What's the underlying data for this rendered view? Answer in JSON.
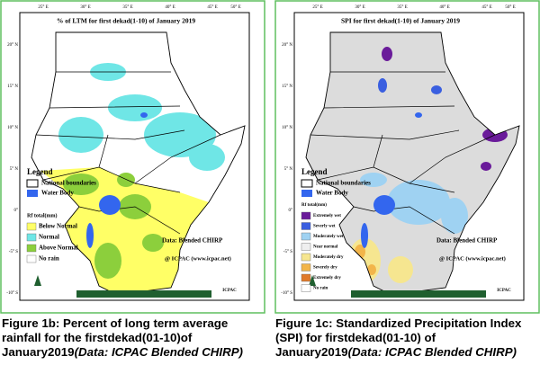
{
  "map_grid": {
    "lon_labels": [
      "25° E",
      "30° E",
      "35° E",
      "40° E",
      "45° E",
      "50° E"
    ],
    "lat_labels": [
      "20° N",
      "15° N",
      "10° N",
      "5° N",
      "0°",
      "-5° S",
      "-10° S"
    ]
  },
  "panels": [
    {
      "title": "% of LTM   for  first dekad(1-10) of January  2019",
      "legend_title": "Legend",
      "boundary_label": "National boundaries",
      "water_label": "Water Body",
      "rf_title": "Rf total(mm)",
      "legend_items": [
        {
          "label": "Below Normal",
          "color": "#ffff66"
        },
        {
          "label": "Normal",
          "color": "#6fe6e6"
        },
        {
          "label": "Above Normal",
          "color": "#8ccf3c"
        },
        {
          "label": "No rain",
          "color": "#ffffff"
        }
      ],
      "data_source": "Data: Blended CHIRP",
      "credit": "@ ICPAC (www.icpac.net)",
      "logo_text": "ICPAC",
      "caption": "Figure 1b: Percent of long term average rainfall for the firstdekad(01-10)of January2019",
      "caption_note": "(Data: ICPAC Blended CHIRP)"
    },
    {
      "title": "SPI  for first dekad(1-10) of January 2019",
      "legend_title": "Legend",
      "boundary_label": "National boundaries",
      "water_label": "Water Body",
      "rf_title": "Rf total(mm)",
      "legend_items": [
        {
          "label": "Extremely wet",
          "color": "#6a1b9a"
        },
        {
          "label": "Severly wet",
          "color": "#3a5fe0"
        },
        {
          "label": "Moderately wet",
          "color": "#9fd2f2"
        },
        {
          "label": "Near normal",
          "color": "#efefef"
        },
        {
          "label": "Moderately dry",
          "color": "#f6e690"
        },
        {
          "label": "Severely dry",
          "color": "#f2b54a"
        },
        {
          "label": "Extremely dry",
          "color": "#e07a2a"
        },
        {
          "label": "No rain",
          "color": "#ffffff"
        }
      ],
      "data_source": "Data: Blended CHIRP",
      "credit": "@ ICPAC (www.icpac.net)",
      "logo_text": "ICPAC",
      "caption": "Figure 1c: Standardized Precipitation Index (SPI) for firstdekad(01-10) of January2019",
      "caption_note": "(Data: ICPAC Blended CHIRP)"
    }
  ]
}
